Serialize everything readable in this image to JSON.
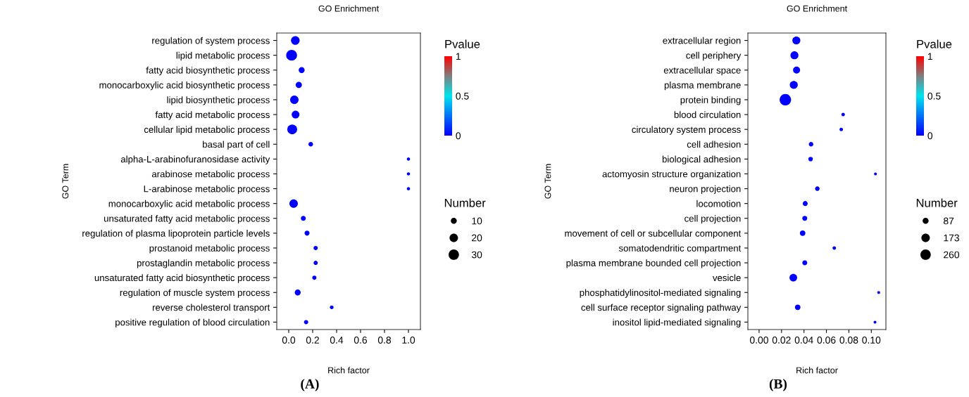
{
  "chart_data": [
    {
      "type": "bubble",
      "orientation": "horizontal",
      "title": "GO Enrichment",
      "xlabel": "Rich factor",
      "ylabel": "GO Term",
      "clabel": "Pvalue",
      "legend_title": "Number",
      "clim": [
        0,
        1
      ],
      "cticks": [
        0,
        0.5,
        1
      ],
      "size_legend": [
        10,
        20,
        30
      ],
      "xlim": [
        -0.1,
        1.1
      ],
      "xticks": [
        {
          "value": 0,
          "label": "0.0"
        },
        0.2,
        0.4,
        0.6,
        0.8,
        {
          "value": 1,
          "label": "1.0"
        }
      ],
      "annotations": [
        "(A)"
      ],
      "categories": [
        "regulation of system process",
        "lipid metabolic process",
        "fatty acid biosynthetic process",
        "monocarboxylic acid biosynthetic process",
        "lipid biosynthetic process",
        "fatty acid metabolic process",
        "cellular lipid metabolic process",
        "basal part of cell",
        "alpha-L-arabinofuranosidase activity",
        "arabinose metabolic process",
        "L-arabinose metabolic process",
        "monocarboxylic acid metabolic process",
        "unsaturated fatty acid metabolic process",
        "regulation of plasma lipoprotein particle levels",
        "prostanoid metabolic process",
        "prostaglandin metabolic process",
        "unsaturated fatty acid biosynthetic process",
        "regulation of muscle system process",
        "reverse cholesterol transport",
        "positive regulation of blood circulation"
      ],
      "values": [
        0.055,
        0.024,
        0.108,
        0.084,
        0.047,
        0.057,
        0.029,
        0.184,
        1.0,
        1.0,
        1.0,
        0.041,
        0.122,
        0.153,
        0.225,
        0.225,
        0.214,
        0.075,
        0.359,
        0.145
      ],
      "sizes": [
        21,
        33,
        10,
        11,
        20,
        17,
        27,
        6,
        3,
        3,
        3,
        20,
        7,
        7,
        5,
        5,
        5,
        10,
        4,
        5
      ],
      "cvalues": [
        0,
        0,
        0,
        0,
        0,
        0,
        0,
        0,
        0,
        0,
        0,
        0,
        0,
        0,
        0,
        0,
        0,
        0,
        0,
        0
      ]
    },
    {
      "type": "bubble",
      "orientation": "horizontal",
      "title": "GO Enrichment",
      "xlabel": "Rich factor",
      "ylabel": "GO Term",
      "clabel": "Pvalue",
      "legend_title": "Number",
      "clim": [
        0,
        1
      ],
      "cticks": [
        0,
        0.5,
        1
      ],
      "size_legend": [
        87,
        173,
        260
      ],
      "xlim": [
        -0.01,
        0.113
      ],
      "xticks": [
        {
          "value": 0,
          "label": "0.00"
        },
        {
          "value": 0.02,
          "label": "0.02"
        },
        {
          "value": 0.04,
          "label": "0.04"
        },
        {
          "value": 0.06,
          "label": "0.06"
        },
        {
          "value": 0.08,
          "label": "0.08"
        },
        {
          "value": 0.1,
          "label": "0.10"
        }
      ],
      "annotations": [
        "(B)"
      ],
      "categories": [
        "extracellular region",
        "cell periphery",
        "extracellular space",
        "plasma membrane",
        "protein binding",
        "blood circulation",
        "circulatory system process",
        "cell adhesion",
        "biological adhesion",
        "actomyosin structure organization",
        "neuron projection",
        "locomotion",
        "cell projection",
        "movement of cell or subcellular component",
        "somatodendritic compartment",
        "plasma membrane bounded cell projection",
        "vesicle",
        "phosphatidylinositol-mediated signaling",
        "cell surface receptor signaling pathway",
        "inositol lipid-mediated signaling"
      ],
      "values": [
        0.0332,
        0.0315,
        0.0334,
        0.0309,
        0.0234,
        0.0749,
        0.0732,
        0.0463,
        0.0459,
        0.1037,
        0.0519,
        0.0411,
        0.0407,
        0.0388,
        0.067,
        0.0407,
        0.0305,
        0.1066,
        0.0344,
        0.1033
      ],
      "sizes": [
        155,
        155,
        120,
        155,
        320,
        30,
        30,
        50,
        50,
        20,
        50,
        60,
        60,
        75,
        30,
        60,
        140,
        20,
        75,
        20
      ],
      "cvalues": [
        0,
        0,
        0,
        0,
        0,
        0,
        0,
        0,
        0,
        0,
        0,
        0,
        0,
        0,
        0,
        0,
        0,
        0,
        0,
        0
      ]
    }
  ]
}
